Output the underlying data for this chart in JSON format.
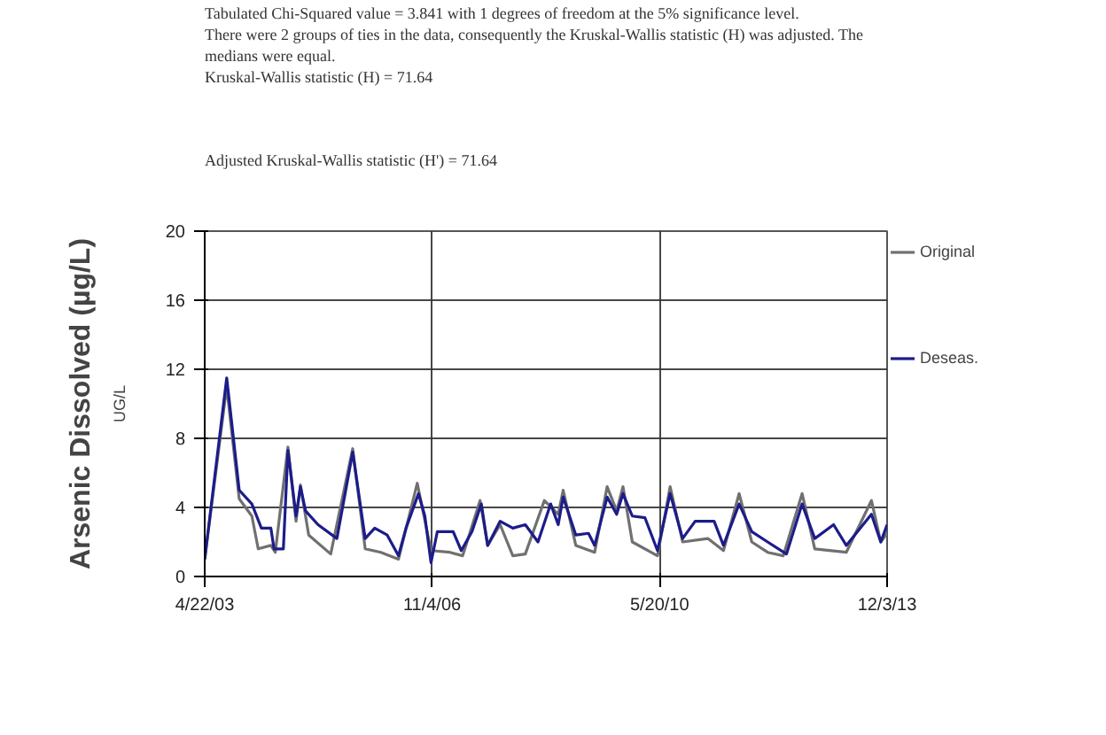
{
  "chart_data": {
    "type": "line",
    "title": "Arsenic Dissolved (µg/L)",
    "ylabel": "UG/L",
    "annotations": [
      "Tabulated Chi-Squared value = 3.841 with 1 degrees of freedom at the 5% significance level.",
      "There were 2 groups of ties in the data, consequently the Kruskal-Wallis statistic (H) was adjusted. The",
      "medians were equal.",
      "Kruskal-Wallis statistic (H) = 71.64",
      "Adjusted Kruskal-Wallis statistic (H') = 71.64"
    ],
    "xlim": [
      "2003-04-22",
      "2013-12-03"
    ],
    "xticks": [
      {
        "value": "2003-04-22",
        "label": "4/22/03"
      },
      {
        "value": "2006-11-04",
        "label": "11/4/06"
      },
      {
        "value": "2010-05-20",
        "label": "5/20/10"
      },
      {
        "value": "2013-12-03",
        "label": "12/3/13"
      }
    ],
    "ylim": [
      0,
      20
    ],
    "yticks": [
      0,
      4,
      8,
      12,
      16,
      20
    ],
    "grid": true,
    "legend": "right",
    "marker": "none",
    "line_style": "solid",
    "series": [
      {
        "name": "Original",
        "color": "#707070",
        "x": [
          "2003-04-22",
          "2003-08-25",
          "2003-11-04",
          "2004-01-15",
          "2004-02-20",
          "2004-05-02",
          "2004-05-27",
          "2004-08-07",
          "2004-09-22",
          "2004-10-17",
          "2004-12-03",
          "2005-04-07",
          "2005-08-10",
          "2005-10-20",
          "2006-01-17",
          "2006-04-27",
          "2006-08-12",
          "2006-10-29",
          "2007-02-14",
          "2007-04-27",
          "2007-08-04",
          "2007-09-16",
          "2007-11-26",
          "2008-02-06",
          "2008-04-17",
          "2008-08-03",
          "2008-10-21",
          "2008-11-18",
          "2009-01-29",
          "2009-05-16",
          "2009-07-26",
          "2009-09-18",
          "2009-10-24",
          "2009-12-16",
          "2010-05-08",
          "2010-07-19",
          "2010-09-28",
          "2011-02-18",
          "2011-05-18",
          "2011-08-15",
          "2011-10-26",
          "2012-01-24",
          "2012-04-22",
          "2012-08-07",
          "2012-10-18",
          "2013-04-15",
          "2013-09-05",
          "2013-10-28",
          "2013-12-03"
        ],
        "values": [
          1.0,
          11.0,
          4.5,
          3.5,
          1.6,
          1.8,
          1.4,
          7.5,
          3.2,
          5.3,
          2.4,
          1.3,
          7.4,
          1.6,
          1.4,
          1.0,
          5.4,
          1.5,
          1.4,
          1.2,
          4.4,
          1.8,
          3.0,
          1.2,
          1.3,
          4.4,
          3.6,
          5.0,
          1.8,
          1.4,
          5.2,
          3.8,
          5.2,
          2.0,
          1.2,
          5.2,
          2.0,
          2.2,
          1.5,
          4.8,
          2.0,
          1.4,
          1.2,
          4.8,
          1.6,
          1.4,
          4.4,
          2.0,
          2.5
        ]
      },
      {
        "name": "Deseas.",
        "color": "#1c1c8a",
        "x": [
          "2003-04-22",
          "2003-08-25",
          "2003-11-04",
          "2004-01-15",
          "2004-03-09",
          "2004-05-02",
          "2004-05-20",
          "2004-07-12",
          "2004-08-07",
          "2004-09-22",
          "2004-10-17",
          "2004-11-15",
          "2005-01-25",
          "2005-05-12",
          "2005-08-10",
          "2005-10-20",
          "2005-12-13",
          "2006-02-22",
          "2006-04-27",
          "2006-06-09",
          "2006-08-19",
          "2006-09-24",
          "2006-10-29",
          "2006-12-04",
          "2007-03-04",
          "2007-04-19",
          "2007-06-19",
          "2007-08-11",
          "2007-09-16",
          "2007-11-26",
          "2008-02-06",
          "2008-04-17",
          "2008-06-28",
          "2008-09-08",
          "2008-10-21",
          "2008-11-18",
          "2009-01-29",
          "2009-04-11",
          "2009-05-16",
          "2009-07-26",
          "2009-09-18",
          "2009-10-24",
          "2009-12-16",
          "2010-02-26",
          "2010-05-08",
          "2010-07-19",
          "2010-09-28",
          "2010-12-08",
          "2011-03-26",
          "2011-05-18",
          "2011-08-15",
          "2011-10-26",
          "2012-01-24",
          "2012-05-10",
          "2012-08-07",
          "2012-10-18",
          "2013-02-02",
          "2013-04-15",
          "2013-09-05",
          "2013-10-28",
          "2013-12-03"
        ],
        "values": [
          1.0,
          11.5,
          5.0,
          4.2,
          2.8,
          2.8,
          1.6,
          1.6,
          7.3,
          3.5,
          5.2,
          3.8,
          3.0,
          2.2,
          7.2,
          2.2,
          2.8,
          2.4,
          1.2,
          2.8,
          4.8,
          3.5,
          0.8,
          2.6,
          2.6,
          1.5,
          2.6,
          4.2,
          1.8,
          3.2,
          2.8,
          3.0,
          2.0,
          4.2,
          3.0,
          4.6,
          2.4,
          2.5,
          1.8,
          4.6,
          3.6,
          4.8,
          3.5,
          3.4,
          1.5,
          4.8,
          2.2,
          3.2,
          3.2,
          1.8,
          4.2,
          2.6,
          2.0,
          1.3,
          4.2,
          2.2,
          3.0,
          1.8,
          3.6,
          2.0,
          3.0
        ]
      }
    ]
  }
}
